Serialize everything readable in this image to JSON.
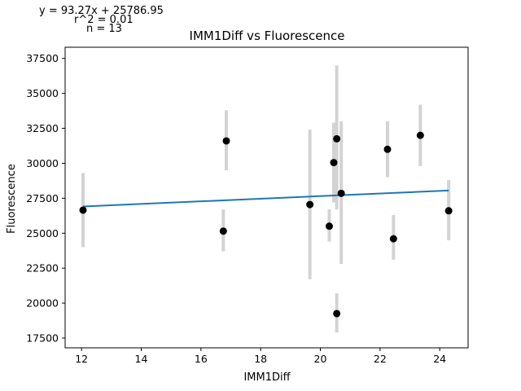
{
  "chart_data": {
    "type": "scatter",
    "title": "IMM1Diff vs Fluorescence",
    "xlabel": "IMM1Diff",
    "ylabel": "Fluorescence",
    "annotations": {
      "equation": "y = 93.27x + 25786.95",
      "r2": "r^2 = 0.01",
      "n": "n = 13"
    },
    "xlim": [
      11.45,
      24.95
    ],
    "ylim": [
      16800,
      38300
    ],
    "xticks": [
      12,
      14,
      16,
      18,
      20,
      22,
      24
    ],
    "yticks": [
      17500,
      20000,
      22500,
      25000,
      27500,
      30000,
      32500,
      35000,
      37500
    ],
    "points": [
      {
        "x": 12.05,
        "y": 26650,
        "err_low": 24000,
        "err_high": 29300
      },
      {
        "x": 16.75,
        "y": 25150,
        "err_low": 23700,
        "err_high": 26700
      },
      {
        "x": 16.85,
        "y": 31600,
        "err_low": 29500,
        "err_high": 33800
      },
      {
        "x": 19.65,
        "y": 27050,
        "err_low": 21700,
        "err_high": 32400
      },
      {
        "x": 20.3,
        "y": 25500,
        "err_low": 24400,
        "err_high": 26700
      },
      {
        "x": 20.45,
        "y": 30050,
        "err_low": 27200,
        "err_high": 32900
      },
      {
        "x": 20.55,
        "y": 31750,
        "err_low": 26700,
        "err_high": 37000
      },
      {
        "x": 20.55,
        "y": 19250,
        "err_low": 17900,
        "err_high": 20700
      },
      {
        "x": 20.7,
        "y": 27850,
        "err_low": 22800,
        "err_high": 33000
      },
      {
        "x": 22.25,
        "y": 31000,
        "err_low": 29000,
        "err_high": 33000
      },
      {
        "x": 22.45,
        "y": 24600,
        "err_low": 23100,
        "err_high": 26300
      },
      {
        "x": 23.35,
        "y": 32000,
        "err_low": 29800,
        "err_high": 34200
      },
      {
        "x": 24.3,
        "y": 26600,
        "err_low": 24500,
        "err_high": 28800
      }
    ],
    "fit_line": {
      "slope": 93.27,
      "intercept": 25786.95,
      "x_range": [
        12.05,
        24.3
      ]
    },
    "colors": {
      "point": "#000000",
      "errorbar": "#d3d3d3",
      "fit": "#1f77b4"
    },
    "grid": false,
    "legend": "none"
  }
}
